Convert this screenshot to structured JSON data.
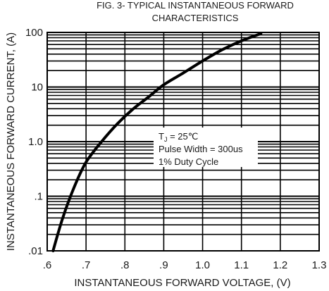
{
  "chart_data": {
    "type": "line",
    "title_line1": "FIG. 3- TYPICAL INSTANTANEOUS FORWARD",
    "title_line2": "CHARACTERISTICS",
    "xlabel": "INSTANTANEOUS FORWARD VOLTAGE, (V)",
    "ylabel": "INSTANTANEOUS FORWARD CURRENT, (A)",
    "xlim": [
      0.6,
      1.3
    ],
    "ylim": [
      0.01,
      100
    ],
    "yscale": "log",
    "x_ticks": [
      0.6,
      0.7,
      0.8,
      0.9,
      1.0,
      1.1,
      1.2,
      1.3
    ],
    "x_tick_labels": [
      ".6",
      ".7",
      ".8",
      ".9",
      "1.0",
      "1.1",
      "1.2",
      "1.3"
    ],
    "y_ticks": [
      0.01,
      0.1,
      1,
      10,
      100
    ],
    "y_tick_labels": [
      ".01",
      ".1",
      "1.0",
      "10",
      "100"
    ],
    "grid": true,
    "annotation": {
      "tj_prefix": "T",
      "tj_sub": "J",
      "tj_suffix": " = 25℃",
      "line2": "Pulse Width = 300us",
      "line3": "1% Duty Cycle"
    },
    "series": [
      {
        "x": [
          0.615,
          0.64,
          0.67,
          0.7,
          0.74,
          0.78,
          0.82,
          0.86,
          0.9,
          0.95,
          1.0,
          1.05,
          1.1,
          1.15
        ],
        "y": [
          0.01,
          0.04,
          0.15,
          0.42,
          1.0,
          2.1,
          3.9,
          6.5,
          11,
          18,
          30,
          48,
          70,
          95
        ]
      }
    ]
  }
}
